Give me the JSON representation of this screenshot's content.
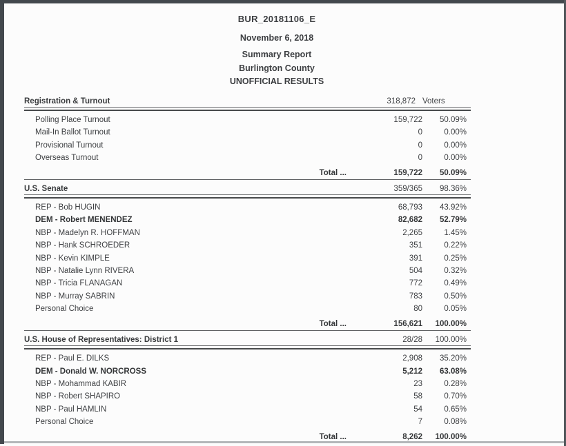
{
  "page": {
    "titles": [
      "BUR_20181106_E",
      "November 6, 2018",
      "Summary Report",
      "Burlington County",
      "UNOFFICIAL RESULTS"
    ]
  },
  "sections": [
    {
      "title": "Registration & Turnout",
      "stat_votes": "318,872",
      "stat_pct": "Voters",
      "rows": [
        {
          "label": "Polling Place Turnout",
          "votes": "159,722",
          "pct": "50.09%"
        },
        {
          "label": "Mail-In Ballot Turnout",
          "votes": "0",
          "pct": "0.00%"
        },
        {
          "label": "Provisional Turnout",
          "votes": "0",
          "pct": "0.00%"
        },
        {
          "label": "Overseas Turnout",
          "votes": "0",
          "pct": "0.00%"
        }
      ],
      "total": {
        "label": "Total ...",
        "votes": "159,722",
        "pct": "50.09%"
      }
    },
    {
      "title": "U.S. Senate",
      "stat_votes": "359/365",
      "stat_pct": "98.36%",
      "rows": [
        {
          "label": "REP - Bob HUGIN",
          "votes": "68,793",
          "pct": "43.92%"
        },
        {
          "label": "DEM - Robert MENENDEZ",
          "votes": "82,682",
          "pct": "52.79%",
          "bold": true
        },
        {
          "label": "NBP - Madelyn R. HOFFMAN",
          "votes": "2,265",
          "pct": "1.45%"
        },
        {
          "label": "NBP - Hank SCHROEDER",
          "votes": "351",
          "pct": "0.22%"
        },
        {
          "label": "NBP - Kevin KIMPLE",
          "votes": "391",
          "pct": "0.25%"
        },
        {
          "label": "NBP - Natalie Lynn RIVERA",
          "votes": "504",
          "pct": "0.32%"
        },
        {
          "label": "NBP - Tricia FLANAGAN",
          "votes": "772",
          "pct": "0.49%"
        },
        {
          "label": "NBP - Murray SABRIN",
          "votes": "783",
          "pct": "0.50%"
        },
        {
          "label": "Personal Choice",
          "votes": "80",
          "pct": "0.05%"
        }
      ],
      "total": {
        "label": "Total ...",
        "votes": "156,621",
        "pct": "100.00%"
      }
    },
    {
      "title": "U.S. House of Representatives: District 1",
      "stat_votes": "28/28",
      "stat_pct": "100.00%",
      "rows": [
        {
          "label": "REP - Paul E. DILKS",
          "votes": "2,908",
          "pct": "35.20%"
        },
        {
          "label": "DEM - Donald W. NORCROSS",
          "votes": "5,212",
          "pct": "63.08%",
          "bold": true
        },
        {
          "label": "NBP - Mohammad KABIR",
          "votes": "23",
          "pct": "0.28%"
        },
        {
          "label": "NBP - Robert SHAPIRO",
          "votes": "58",
          "pct": "0.70%"
        },
        {
          "label": "NBP - Paul HAMLIN",
          "votes": "54",
          "pct": "0.65%"
        },
        {
          "label": "Personal Choice",
          "votes": "7",
          "pct": "0.08%"
        }
      ],
      "total": {
        "label": "Total ...",
        "votes": "8,262",
        "pct": "100.00%"
      }
    }
  ]
}
